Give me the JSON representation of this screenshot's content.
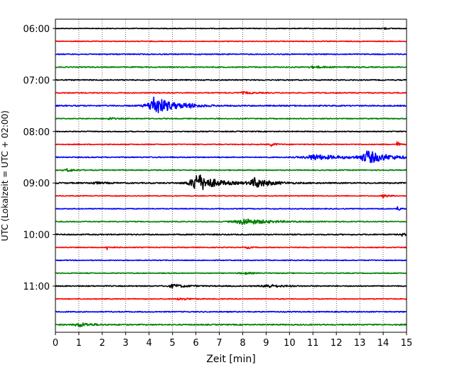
{
  "chart_data": {
    "type": "line",
    "title": "",
    "xlabel": "Zeit  [min]",
    "ylabel": "UTC (Lokalzeit = UTC + 02:00)",
    "xlim": [
      0,
      15
    ],
    "x_ticks": [
      "0",
      "1",
      "2",
      "3",
      "4",
      "5",
      "6",
      "7",
      "8",
      "9",
      "10",
      "11",
      "12",
      "13",
      "14",
      "15"
    ],
    "y_ticks": [
      "06:00",
      "07:00",
      "08:00",
      "09:00",
      "10:00",
      "11:00"
    ],
    "trace_interval_min": 15,
    "grid": "vertical dotted",
    "colors": [
      "#000000",
      "#ff0000",
      "#0000ff",
      "#008000"
    ],
    "traces": [
      {
        "start": "06:00",
        "color": "#000000",
        "noise": 1.0,
        "events": [
          {
            "t": 14.0,
            "amp": 3,
            "width": 0.15
          }
        ]
      },
      {
        "start": "06:15",
        "color": "#ff0000",
        "noise": 1.0,
        "events": []
      },
      {
        "start": "06:30",
        "color": "#0000ff",
        "noise": 1.3,
        "events": []
      },
      {
        "start": "06:45",
        "color": "#008000",
        "noise": 1.3,
        "events": [
          {
            "t": 11.0,
            "amp": 3,
            "width": 0.5
          }
        ]
      },
      {
        "start": "07:00",
        "color": "#000000",
        "noise": 1.3,
        "events": []
      },
      {
        "start": "07:15",
        "color": "#ff0000",
        "noise": 1.2,
        "events": [
          {
            "t": 8.0,
            "amp": 3,
            "width": 0.4
          }
        ]
      },
      {
        "start": "07:30",
        "color": "#0000ff",
        "noise": 1.5,
        "events": [
          {
            "t": 4.2,
            "amp": 28,
            "width": 0.7
          },
          {
            "t": 5.6,
            "amp": 4,
            "width": 0.4
          }
        ]
      },
      {
        "start": "07:45",
        "color": "#008000",
        "noise": 1.2,
        "events": [
          {
            "t": 2.3,
            "amp": 4,
            "width": 0.2
          }
        ]
      },
      {
        "start": "08:00",
        "color": "#000000",
        "noise": 1.2,
        "events": []
      },
      {
        "start": "08:15",
        "color": "#ff0000",
        "noise": 1.1,
        "events": [
          {
            "t": 9.2,
            "amp": 5,
            "width": 0.2
          },
          {
            "t": 14.6,
            "amp": 10,
            "width": 0.08
          }
        ]
      },
      {
        "start": "08:30",
        "color": "#0000ff",
        "noise": 1.3,
        "events": [
          {
            "t": 11.0,
            "amp": 8,
            "width": 1.1
          },
          {
            "t": 13.3,
            "amp": 18,
            "width": 0.8
          }
        ]
      },
      {
        "start": "08:45",
        "color": "#008000",
        "noise": 1.2,
        "events": [
          {
            "t": 0.5,
            "amp": 4,
            "width": 0.3
          }
        ]
      },
      {
        "start": "09:00",
        "color": "#000000",
        "noise": 1.6,
        "events": [
          {
            "t": 6.0,
            "amp": 28,
            "width": 0.7
          },
          {
            "t": 8.5,
            "amp": 14,
            "width": 0.6
          },
          {
            "t": 1.6,
            "amp": 3,
            "width": 0.4
          }
        ]
      },
      {
        "start": "09:15",
        "color": "#ff0000",
        "noise": 1.0,
        "events": [
          {
            "t": 14.0,
            "amp": 5,
            "width": 0.2
          }
        ]
      },
      {
        "start": "09:30",
        "color": "#0000ff",
        "noise": 1.1,
        "events": [
          {
            "t": 14.6,
            "amp": 6,
            "width": 0.15
          }
        ]
      },
      {
        "start": "09:45",
        "color": "#008000",
        "noise": 1.1,
        "events": [
          {
            "t": 8.0,
            "amp": 9,
            "width": 1.0
          }
        ]
      },
      {
        "start": "10:00",
        "color": "#000000",
        "noise": 1.4,
        "events": [
          {
            "t": 14.8,
            "amp": 4,
            "width": 0.15
          }
        ]
      },
      {
        "start": "10:15",
        "color": "#ff0000",
        "noise": 1.1,
        "events": [
          {
            "t": 2.2,
            "amp": 6,
            "width": 0.15
          },
          {
            "t": 8.2,
            "amp": 3,
            "width": 0.15
          }
        ]
      },
      {
        "start": "10:30",
        "color": "#0000ff",
        "noise": 1.1,
        "events": []
      },
      {
        "start": "10:45",
        "color": "#008000",
        "noise": 1.1,
        "events": [
          {
            "t": 8.0,
            "amp": 3,
            "width": 0.4
          }
        ]
      },
      {
        "start": "11:00",
        "color": "#000000",
        "noise": 1.4,
        "events": [
          {
            "t": 5.0,
            "amp": 5,
            "width": 0.5
          },
          {
            "t": 9.0,
            "amp": 5,
            "width": 0.5
          }
        ]
      },
      {
        "start": "11:15",
        "color": "#ff0000",
        "noise": 1.1,
        "events": [
          {
            "t": 5.3,
            "amp": 4,
            "width": 0.3
          }
        ]
      },
      {
        "start": "11:30",
        "color": "#0000ff",
        "noise": 1.3,
        "events": []
      },
      {
        "start": "11:45",
        "color": "#008000",
        "noise": 1.5,
        "events": [
          {
            "t": 1.0,
            "amp": 6,
            "width": 0.5
          }
        ]
      }
    ]
  }
}
